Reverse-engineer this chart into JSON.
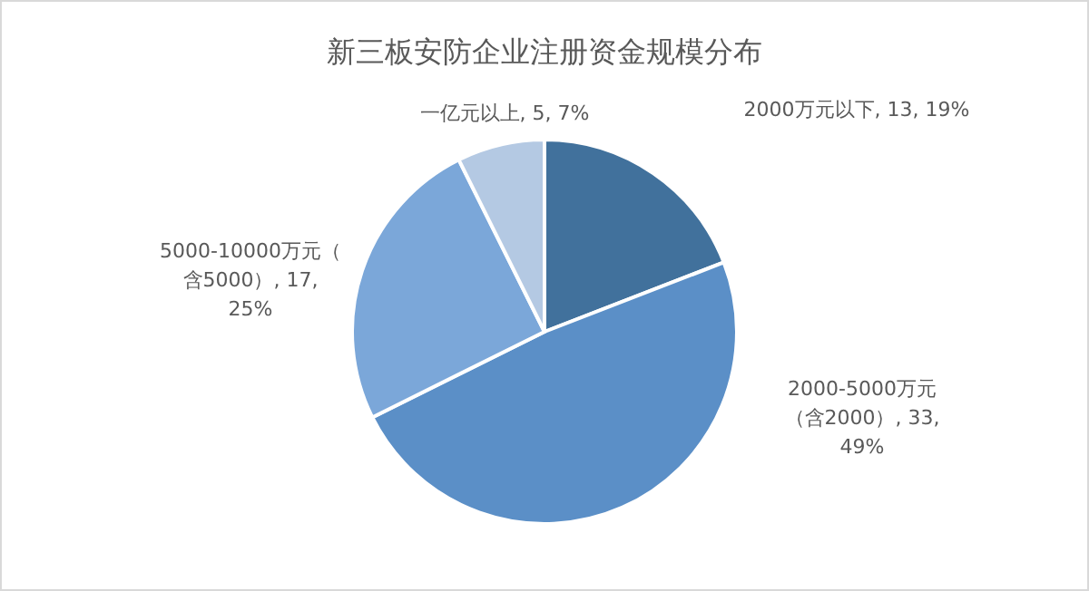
{
  "chart_data": {
    "type": "pie",
    "title": "新三板安防企业注册资金规模分布",
    "categories": [
      "2000万元以下",
      "2000-5000万元（含2000）",
      "5000-10000万元（含5000）",
      "一亿元以上"
    ],
    "values": [
      13,
      33,
      17,
      5
    ],
    "value_labels": [
      "13, 19%",
      "33, 49%",
      "17, 25%",
      "5, 7%"
    ],
    "colors": [
      "#41719c",
      "#5b8fc7",
      "#7ba7d9",
      "#b4c9e3"
    ]
  }
}
